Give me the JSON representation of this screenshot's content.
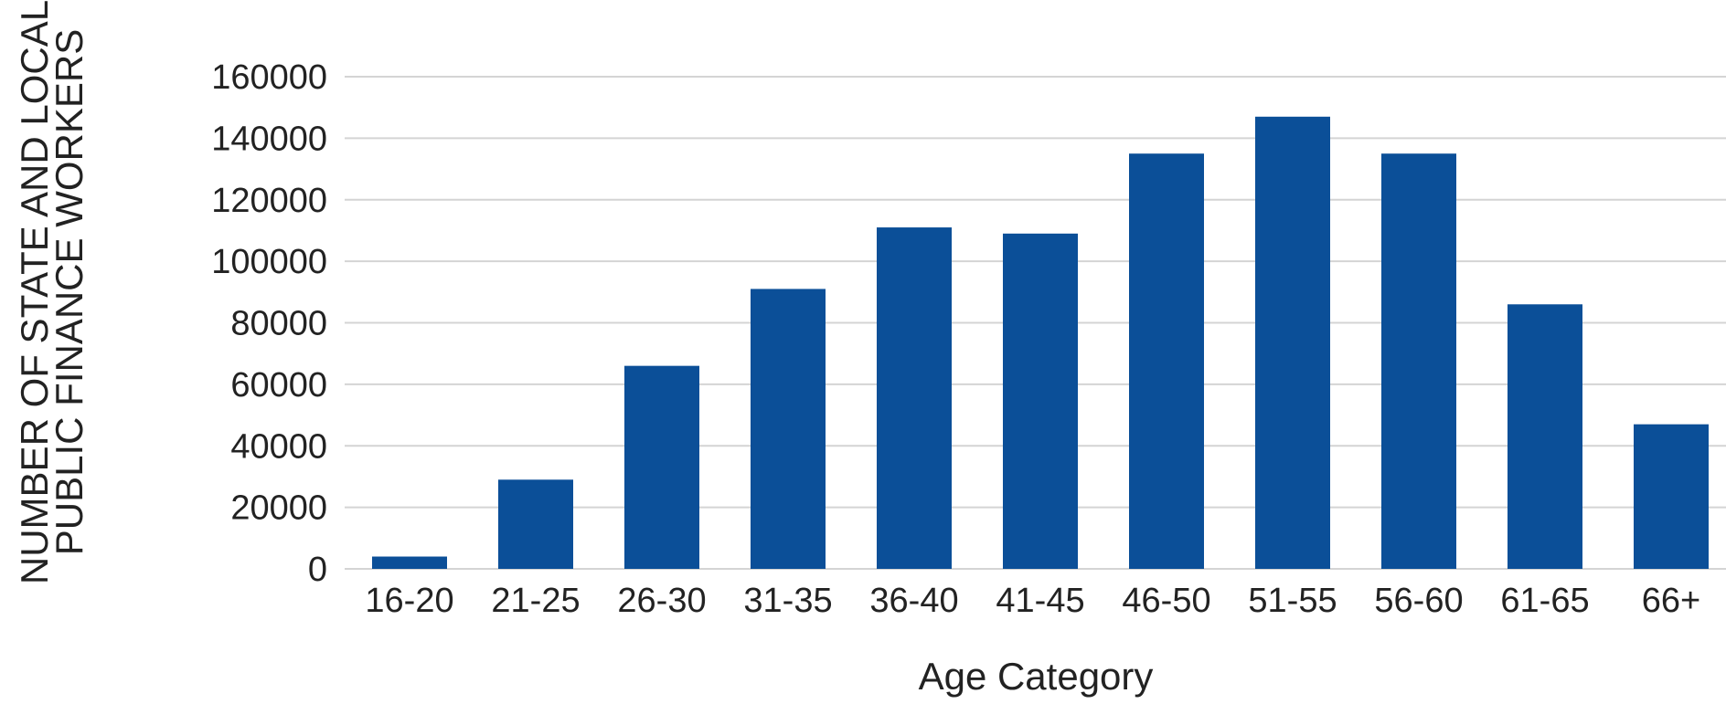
{
  "chart_data": {
    "type": "bar",
    "title": "",
    "xlabel": "Age Category",
    "ylabel_lines": [
      "NUMBER OF STATE AND LOCAL",
      "PUBLIC FINANCE WORKERS"
    ],
    "categories": [
      "16-20",
      "21-25",
      "26-30",
      "31-35",
      "36-40",
      "41-45",
      "46-50",
      "51-55",
      "56-60",
      "61-65",
      "66+"
    ],
    "values": [
      4000,
      29000,
      66000,
      91000,
      111000,
      109000,
      135000,
      147000,
      135000,
      86000,
      47000
    ],
    "ylim": [
      0,
      160000
    ],
    "yticks": [
      0,
      20000,
      40000,
      60000,
      80000,
      100000,
      120000,
      140000,
      160000
    ],
    "grid": true,
    "legend": "none",
    "bar_color": "#0b4f98"
  }
}
